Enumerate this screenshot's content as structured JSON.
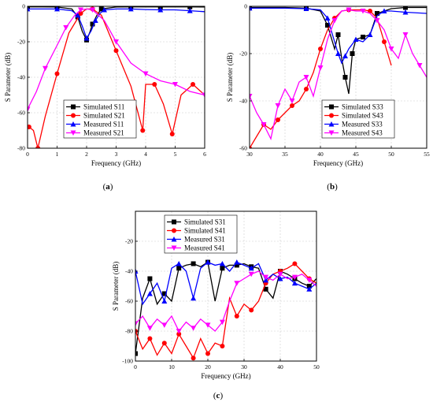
{
  "chart_data": [
    {
      "type": "line",
      "panel": "a",
      "caption": "(a)",
      "xlabel": "Frequency (GHz)",
      "ylabel": "S Parameter (dB)",
      "xlim": [
        0,
        6
      ],
      "ylim": [
        -80,
        0
      ],
      "xticks": [
        0,
        1,
        2,
        3,
        4,
        5,
        6
      ],
      "yticks": [
        -80,
        -60,
        -40,
        -20,
        0
      ],
      "grid": true,
      "legend_position": "bottom-left",
      "colors": {
        "S11_sim": "#000000",
        "S21_sim": "#ff0000",
        "S11_meas": "#0000ff",
        "S21_meas": "#ff00ff"
      },
      "series": [
        {
          "name": "Simulated S11",
          "color": "#000000",
          "marker": "square",
          "x": [
            0,
            0.5,
            1,
            1.5,
            1.7,
            1.85,
            2.0,
            2.1,
            2.2,
            2.35,
            2.5,
            3,
            3.5,
            4,
            4.5,
            5,
            5.5,
            6
          ],
          "y": [
            -0.3,
            -0.3,
            -0.4,
            -1.5,
            -6,
            -14,
            -19,
            -15,
            -10,
            -5,
            -1.5,
            -0.4,
            -0.3,
            -0.3,
            -0.3,
            -0.3,
            -0.3,
            -0.4
          ]
        },
        {
          "name": "Simulated S21",
          "color": "#ff0000",
          "marker": "circle",
          "x": [
            0.05,
            0.2,
            0.35,
            0.6,
            1.0,
            1.4,
            1.8,
            2.0,
            2.2,
            2.5,
            3.0,
            3.5,
            3.9,
            4.0,
            4.3,
            4.6,
            4.9,
            5.2,
            5.6,
            6.0
          ],
          "y": [
            -68,
            -70,
            -80,
            -62,
            -38,
            -15,
            -4,
            -1.5,
            -1.5,
            -5,
            -25,
            -45,
            -70,
            -44,
            -44,
            -55,
            -72,
            -50,
            -44,
            -50
          ]
        },
        {
          "name": "Measured S11",
          "color": "#0000ff",
          "marker": "triangle-up",
          "x": [
            0,
            0.5,
            1,
            1.5,
            1.7,
            1.85,
            2.0,
            2.15,
            2.3,
            2.45,
            2.6,
            3,
            3.5,
            4,
            4.5,
            5,
            5.5,
            6
          ],
          "y": [
            -1.5,
            -1.5,
            -1.5,
            -2.5,
            -5,
            -11,
            -18,
            -14,
            -8,
            -4,
            -2,
            -1.5,
            -1.5,
            -1.8,
            -2,
            -2,
            -2.5,
            -3
          ]
        },
        {
          "name": "Measured S21",
          "color": "#ff00ff",
          "marker": "triangle-down",
          "x": [
            0,
            0.3,
            0.6,
            1.0,
            1.3,
            1.6,
            1.8,
            2.0,
            2.2,
            2.6,
            3.0,
            3.5,
            4.0,
            4.5,
            5.0,
            5.5,
            6.0
          ],
          "y": [
            -58,
            -48,
            -35,
            -22,
            -12,
            -5,
            -2,
            -1.5,
            -2,
            -8,
            -20,
            -32,
            -38,
            -42,
            -44,
            -48,
            -50
          ]
        }
      ]
    },
    {
      "type": "line",
      "panel": "b",
      "caption": "(b)",
      "xlabel": "Frequency (GHz)",
      "ylabel": "S Parameter (dB)",
      "xlim": [
        30,
        55
      ],
      "ylim": [
        -60,
        0
      ],
      "xticks": [
        30,
        35,
        40,
        45,
        50,
        55
      ],
      "yticks": [
        -60,
        -40,
        -20,
        0
      ],
      "grid": true,
      "legend_position": "bottom-right",
      "colors": {
        "S33_sim": "#000000",
        "S43_sim": "#ff0000",
        "S33_meas": "#0000ff",
        "S43_meas": "#ff00ff"
      },
      "series": [
        {
          "name": "Simulated S33",
          "color": "#000000",
          "marker": "square",
          "x": [
            30,
            35,
            38,
            40,
            41,
            42,
            42.5,
            43,
            43.5,
            44,
            44.5,
            45,
            46,
            47,
            48,
            50,
            52,
            55
          ],
          "y": [
            -0.5,
            -0.5,
            -0.8,
            -2,
            -8,
            -18,
            -12,
            -22,
            -30,
            -37,
            -20,
            -14,
            -13,
            -12,
            -3,
            -1,
            -0.5,
            -0.5
          ]
        },
        {
          "name": "Simulated S43",
          "color": "#ff0000",
          "marker": "circle",
          "x": [
            30,
            31,
            32,
            33,
            34,
            35,
            36,
            37,
            38,
            39,
            40,
            41,
            42,
            43,
            44,
            46,
            47,
            48,
            49,
            50
          ],
          "y": [
            -60,
            -55,
            -50,
            -52,
            -48,
            -45,
            -42,
            -40,
            -35,
            -28,
            -18,
            -10,
            -5,
            -2,
            -1.5,
            -1.5,
            -2,
            -5,
            -15,
            -25
          ]
        },
        {
          "name": "Measured S33",
          "color": "#0000ff",
          "marker": "triangle-up",
          "x": [
            30,
            35,
            38,
            40,
            41,
            42,
            42.5,
            43,
            43.5,
            44,
            45,
            46,
            47,
            48,
            49,
            50,
            52,
            55
          ],
          "y": [
            -0.8,
            -0.8,
            -1,
            -1.5,
            -5,
            -15,
            -20,
            -24,
            -21,
            -18,
            -14,
            -15,
            -12,
            -4,
            -2,
            -2,
            -2.5,
            -3
          ]
        },
        {
          "name": "Measured S43",
          "color": "#ff00ff",
          "marker": "triangle-down",
          "x": [
            30,
            31,
            32,
            33,
            34,
            35,
            36,
            37,
            38,
            39,
            40,
            41,
            42,
            43,
            44,
            45,
            46,
            47,
            48,
            49,
            50,
            51,
            52,
            53,
            54,
            55
          ],
          "y": [
            -38,
            -45,
            -50,
            -56,
            -42,
            -35,
            -40,
            -32,
            -30,
            -38,
            -26,
            -14,
            -6,
            -2,
            -1.5,
            -2,
            -2,
            -3,
            -6,
            -10,
            -18,
            -22,
            -12,
            -20,
            -25,
            -30
          ]
        }
      ]
    },
    {
      "type": "line",
      "panel": "c",
      "caption": "(c)",
      "xlabel": "Frequency (GHz)",
      "ylabel": "S Parameter (dB)",
      "xlim": [
        0,
        50
      ],
      "ylim": [
        -100,
        0
      ],
      "xticks": [
        0,
        10,
        20,
        30,
        40,
        50
      ],
      "yticks": [
        -100,
        -80,
        -60,
        -40,
        -20
      ],
      "grid": true,
      "legend_position": "top-left",
      "colors": {
        "S31_sim": "#000000",
        "S41_sim": "#ff0000",
        "S31_meas": "#0000ff",
        "S41_meas": "#ff00ff"
      },
      "series": [
        {
          "name": "Simulated S31",
          "color": "#000000",
          "marker": "square",
          "x": [
            0,
            2,
            4,
            6,
            8,
            10,
            12,
            14,
            16,
            18,
            20,
            22,
            24,
            26,
            28,
            30,
            32,
            34,
            36,
            38,
            40,
            42,
            44,
            46,
            48,
            50
          ],
          "y": [
            -95,
            -58,
            -45,
            -62,
            -55,
            -60,
            -38,
            -36,
            -35,
            -37,
            -34,
            -60,
            -38,
            -36,
            -36,
            -35,
            -37,
            -38,
            -52,
            -58,
            -40,
            -42,
            -45,
            -48,
            -50,
            -45
          ]
        },
        {
          "name": "Simulated S41",
          "color": "#ff0000",
          "marker": "circle",
          "x": [
            0,
            2,
            4,
            6,
            8,
            10,
            12,
            14,
            16,
            18,
            20,
            22,
            24,
            26,
            28,
            30,
            32,
            34,
            36,
            38,
            40,
            42,
            44,
            46,
            48,
            50
          ],
          "y": [
            -80,
            -92,
            -85,
            -96,
            -88,
            -95,
            -82,
            -90,
            -98,
            -85,
            -95,
            -88,
            -90,
            -58,
            -70,
            -62,
            -66,
            -60,
            -48,
            -42,
            -40,
            -38,
            -35,
            -40,
            -45,
            -48
          ]
        },
        {
          "name": "Measured S31",
          "color": "#0000ff",
          "marker": "triangle-up",
          "x": [
            0,
            2,
            4,
            6,
            8,
            10,
            12,
            14,
            16,
            18,
            20,
            22,
            24,
            26,
            28,
            30,
            32,
            34,
            36,
            38,
            40,
            42,
            44,
            46,
            48,
            50
          ],
          "y": [
            -40,
            -62,
            -55,
            -48,
            -60,
            -38,
            -35,
            -40,
            -58,
            -38,
            -34,
            -36,
            -35,
            -40,
            -34,
            -36,
            -38,
            -35,
            -46,
            -42,
            -45,
            -44,
            -48,
            -50,
            -52,
            -48
          ]
        },
        {
          "name": "Measured S41",
          "color": "#ff00ff",
          "marker": "triangle-down",
          "x": [
            0,
            2,
            4,
            6,
            8,
            10,
            12,
            14,
            16,
            18,
            20,
            22,
            24,
            26,
            28,
            30,
            32,
            34,
            36,
            38,
            40,
            42,
            44,
            46,
            48,
            50
          ],
          "y": [
            -75,
            -70,
            -78,
            -72,
            -76,
            -70,
            -80,
            -74,
            -78,
            -72,
            -76,
            -80,
            -74,
            -60,
            -48,
            -45,
            -42,
            -40,
            -44,
            -46,
            -42,
            -45,
            -44,
            -42,
            -46,
            -50
          ]
        }
      ]
    }
  ]
}
